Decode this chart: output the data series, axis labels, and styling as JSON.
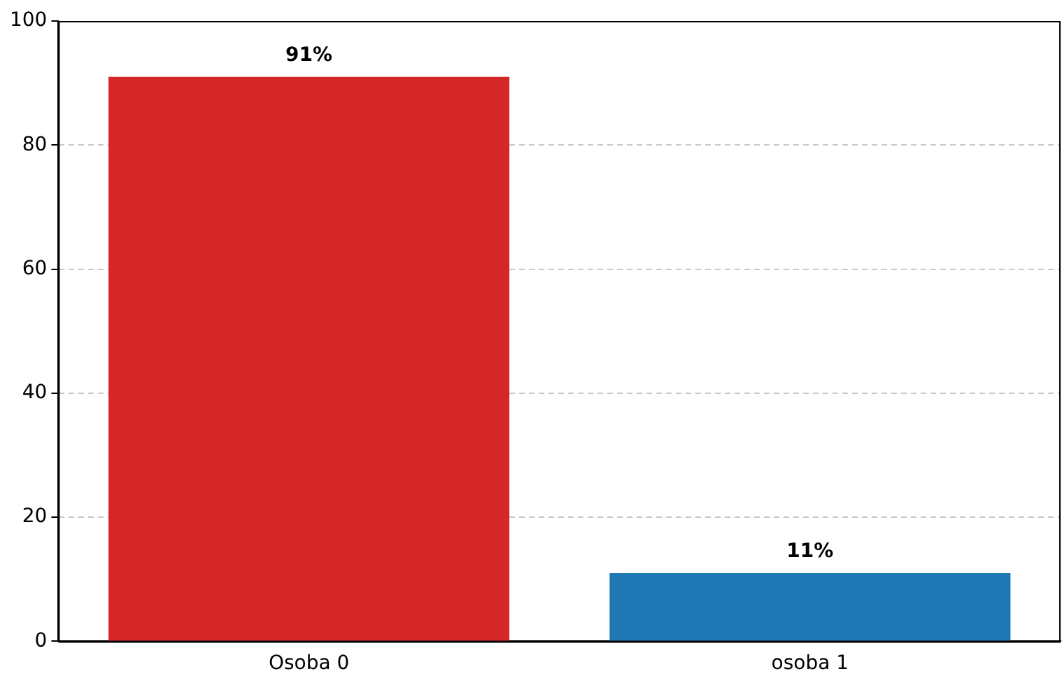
{
  "chart_data": {
    "type": "bar",
    "categories": [
      "Osoba 0",
      "osoba 1"
    ],
    "values": [
      91,
      11
    ],
    "colors": [
      "#d62728",
      "#1f77b4"
    ],
    "value_labels": [
      "91%",
      "11%"
    ],
    "ylim": [
      0,
      100
    ],
    "yticks": [
      0,
      20,
      40,
      60,
      80,
      100
    ],
    "grid": "y",
    "legend": false
  }
}
